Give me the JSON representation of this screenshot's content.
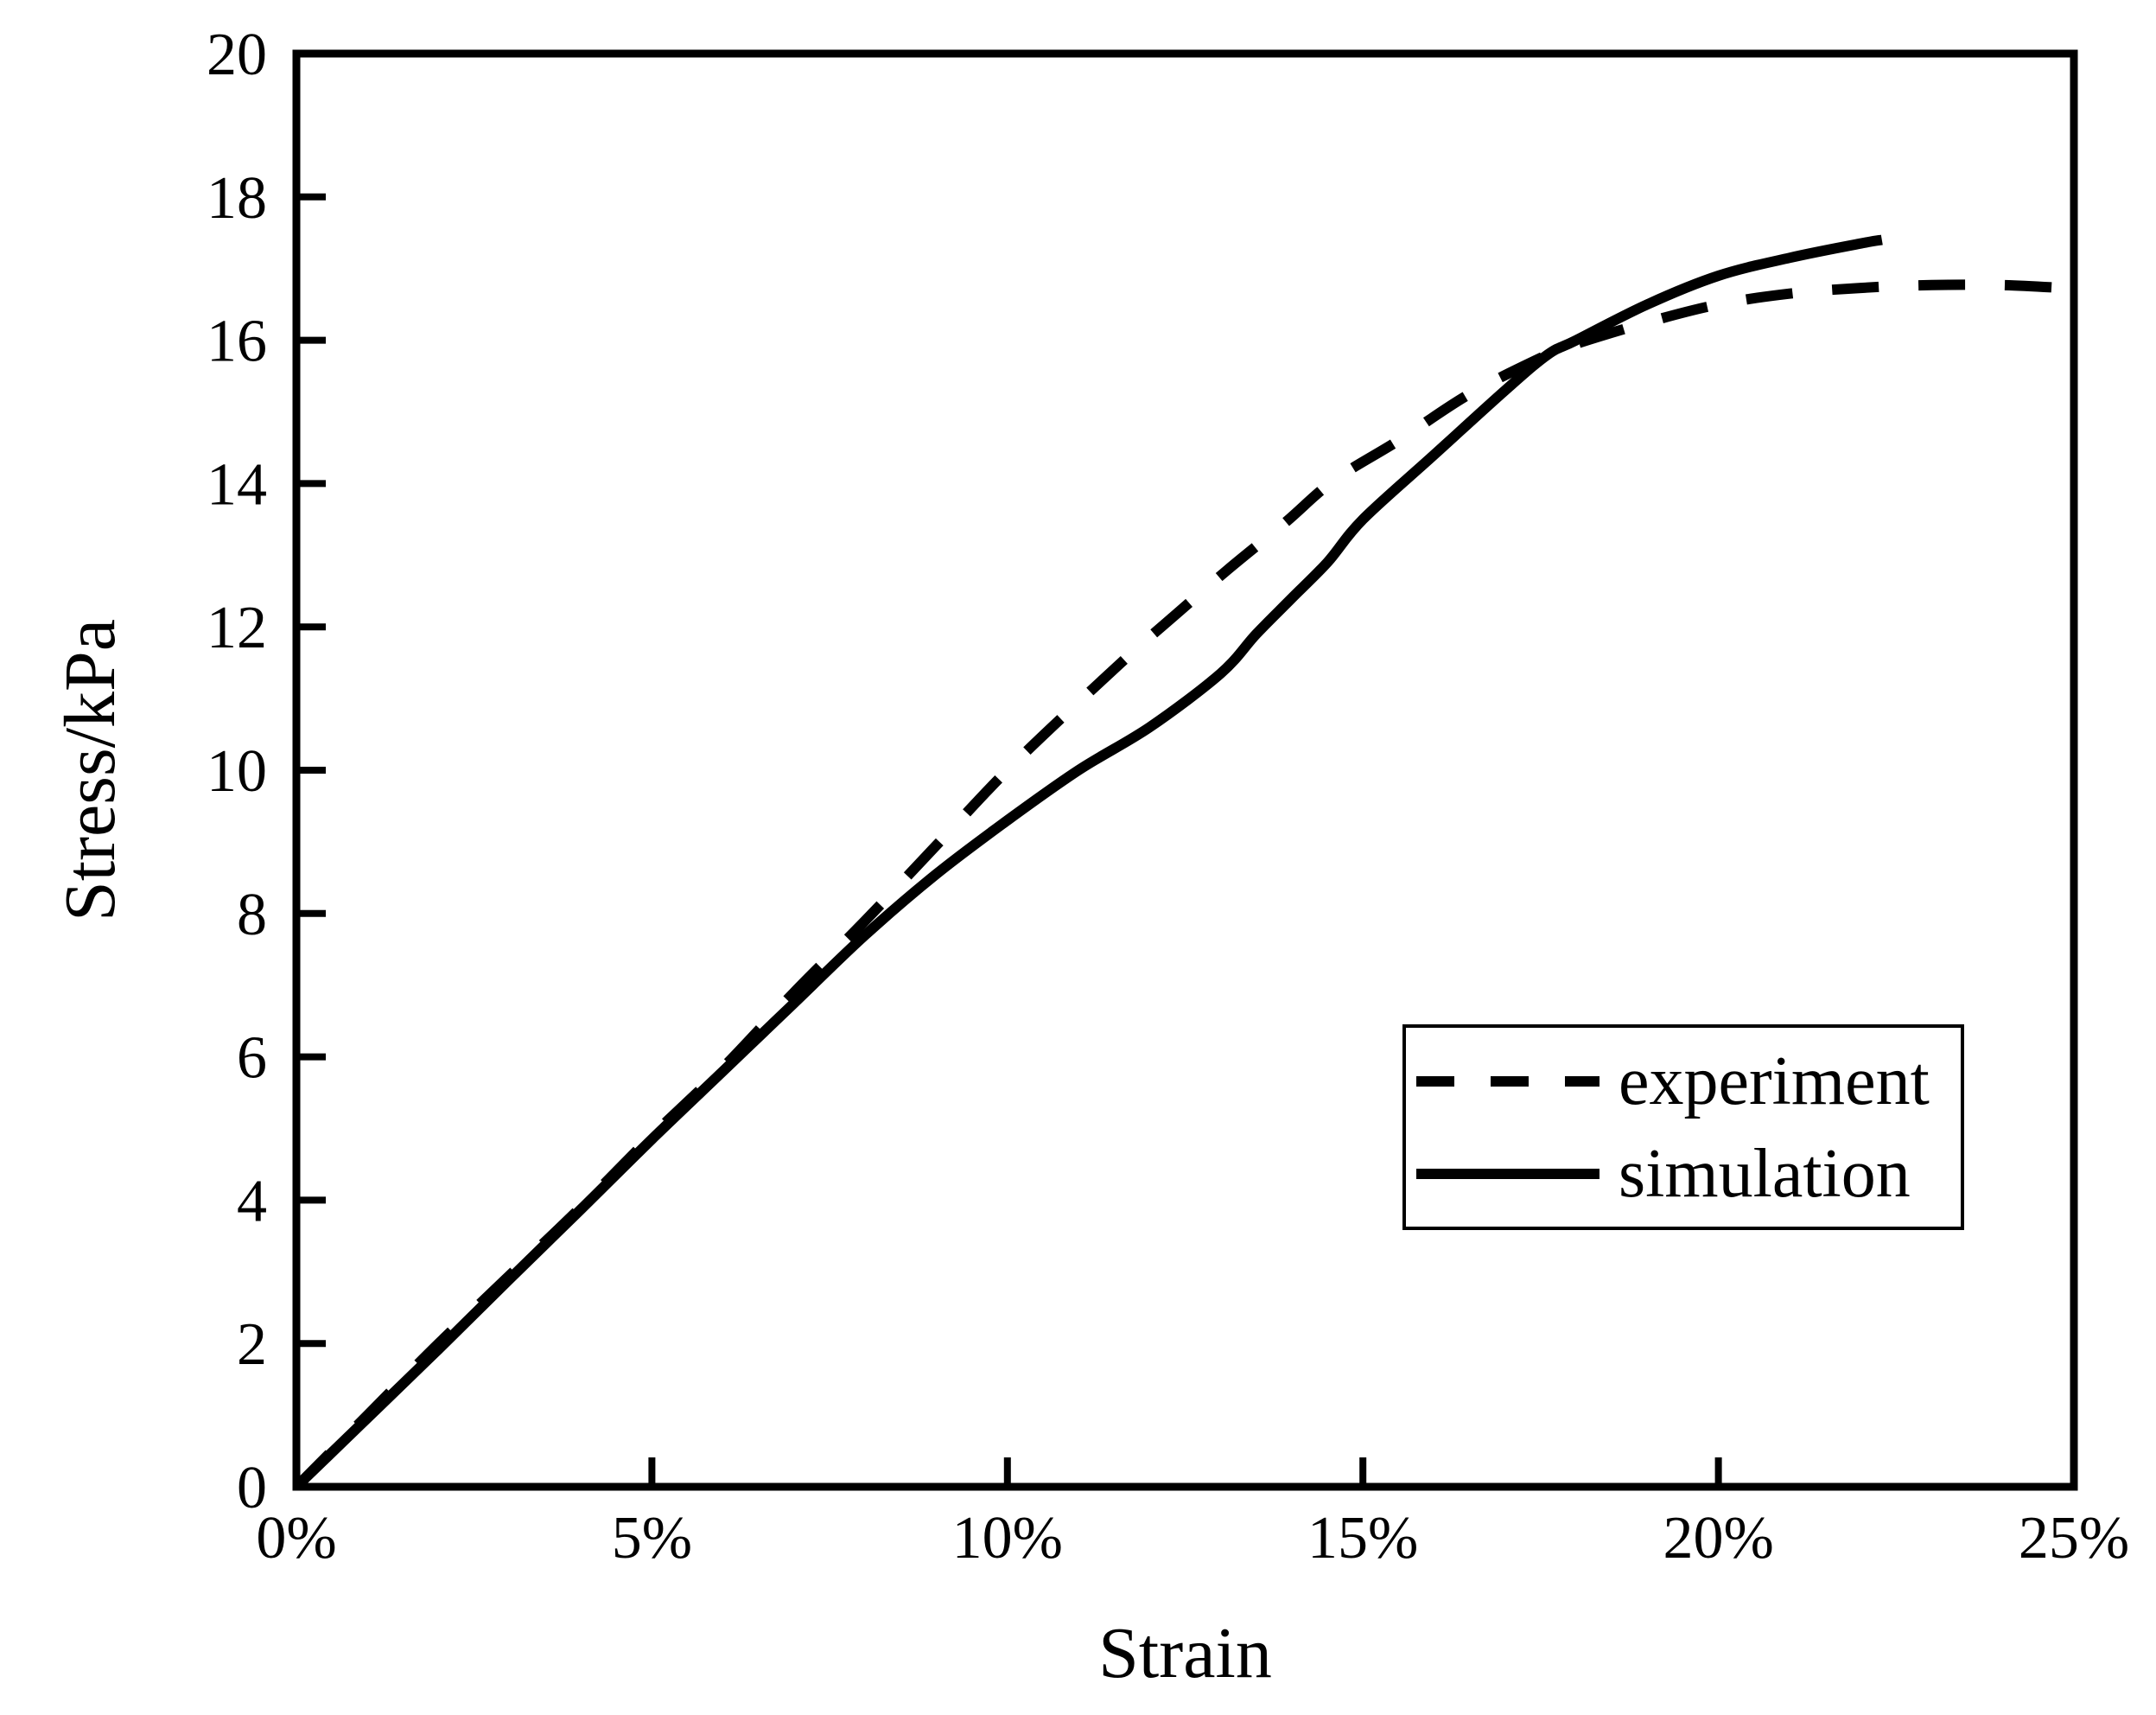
{
  "figure": {
    "background": "#ffffff",
    "ink_color": "#000000"
  },
  "chart_data": {
    "type": "line",
    "title": "",
    "xlabel": "Strain",
    "ylabel": "Stress/kPa",
    "xlim": [
      0,
      25
    ],
    "ylim": [
      0,
      20
    ],
    "x_unit": "percent",
    "grid": false,
    "frame": "full-box",
    "tick_direction": "in",
    "x_tick_values": [
      0,
      5,
      10,
      15,
      20,
      25
    ],
    "x_tick_labels": [
      "0%",
      "5%",
      "10%",
      "15%",
      "20%",
      "25%"
    ],
    "y_tick_values": [
      0,
      2,
      4,
      6,
      8,
      10,
      12,
      14,
      16,
      18,
      20
    ],
    "y_tick_labels": [
      "0",
      "2",
      "4",
      "6",
      "8",
      "10",
      "12",
      "14",
      "16",
      "18",
      "20"
    ],
    "legend_position": "center-right",
    "series": [
      {
        "name": "experiment",
        "style": "dashed",
        "color": "#000000",
        "x": [
          0,
          1,
          2,
          3,
          4,
          5,
          6,
          7,
          8,
          9,
          10.1,
          11.6,
          12.4,
          13.1,
          13.9,
          14.6,
          15.5,
          16.5,
          17.6,
          18,
          19,
          20,
          21,
          22,
          23,
          24,
          25
        ],
        "y": [
          0,
          1.0,
          2.0,
          2.95,
          3.9,
          4.9,
          5.85,
          6.9,
          7.9,
          8.95,
          10.1,
          11.5,
          12.2,
          12.8,
          13.45,
          14.05,
          14.6,
          15.25,
          15.8,
          15.95,
          16.25,
          16.5,
          16.65,
          16.73,
          16.77,
          16.77,
          16.72
        ]
      },
      {
        "name": "simulation",
        "style": "solid",
        "color": "#000000",
        "x": [
          0,
          1,
          2,
          3,
          4,
          5,
          6,
          7,
          8,
          9,
          10,
          11,
          12,
          13,
          13.5,
          14,
          14.5,
          15,
          16,
          17,
          17.6,
          18,
          19,
          20,
          21,
          22,
          22.3
        ],
        "y": [
          0,
          0.96,
          1.92,
          2.9,
          3.87,
          4.85,
          5.8,
          6.75,
          7.7,
          8.55,
          9.3,
          10.0,
          10.6,
          11.35,
          11.9,
          12.4,
          12.9,
          13.5,
          14.4,
          15.3,
          15.8,
          16.0,
          16.5,
          16.9,
          17.15,
          17.35,
          17.4
        ]
      }
    ],
    "annotations": []
  },
  "legend": {
    "items": [
      {
        "label": "experiment",
        "line_style": "dashed"
      },
      {
        "label": "simulation",
        "line_style": "solid"
      }
    ]
  }
}
